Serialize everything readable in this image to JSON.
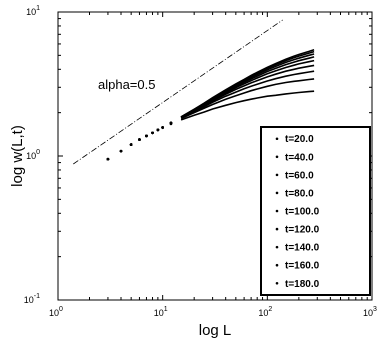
{
  "chart_data": {
    "type": "scatter",
    "title": "",
    "xlabel": "log L",
    "ylabel": "log w(L,t)",
    "xscale": "log",
    "yscale": "log",
    "xlim": [
      1,
      1000
    ],
    "ylim": [
      0.1,
      10
    ],
    "grid": false,
    "legend_position": "bottom-right",
    "x_ticks": [
      {
        "value": 1,
        "base": "10",
        "exp": "0"
      },
      {
        "value": 10,
        "base": "10",
        "exp": "1"
      },
      {
        "value": 100,
        "base": "10",
        "exp": "2"
      },
      {
        "value": 1000,
        "base": "10",
        "exp": "3"
      }
    ],
    "y_ticks": [
      {
        "value": 0.1,
        "base": "10",
        "exp": "-1"
      },
      {
        "value": 1,
        "base": "10",
        "exp": "0"
      },
      {
        "value": 10,
        "base": "10",
        "exp": "1"
      }
    ],
    "reference_line": {
      "label": "alpha=0.5",
      "slope": 0.5,
      "x": [
        1.4,
        140
      ],
      "y": [
        0.88,
        8.8
      ]
    },
    "x": [
      3,
      4,
      5,
      6,
      7,
      8,
      9,
      10,
      12,
      15,
      20,
      25,
      30,
      40,
      50,
      60,
      70,
      80,
      100,
      120,
      150,
      180,
      200,
      250,
      280
    ],
    "series": [
      {
        "name": "t=20.0",
        "values": [
          0.95,
          1.08,
          1.2,
          1.3,
          1.38,
          1.45,
          1.52,
          1.57,
          1.67,
          1.78,
          1.92,
          2.02,
          2.12,
          2.25,
          2.35,
          2.42,
          2.48,
          2.53,
          2.6,
          2.64,
          2.7,
          2.74,
          2.76,
          2.8,
          2.82
        ]
      },
      {
        "name": "t=40.0",
        "values": [
          0.95,
          1.08,
          1.2,
          1.3,
          1.38,
          1.45,
          1.52,
          1.58,
          1.68,
          1.82,
          2.0,
          2.15,
          2.28,
          2.48,
          2.62,
          2.74,
          2.84,
          2.92,
          3.05,
          3.14,
          3.24,
          3.3,
          3.33,
          3.4,
          3.43
        ]
      },
      {
        "name": "t=60.0",
        "values": [
          0.95,
          1.08,
          1.2,
          1.3,
          1.38,
          1.45,
          1.52,
          1.58,
          1.69,
          1.84,
          2.04,
          2.2,
          2.36,
          2.6,
          2.78,
          2.93,
          3.05,
          3.15,
          3.32,
          3.44,
          3.58,
          3.68,
          3.73,
          3.83,
          3.88
        ]
      },
      {
        "name": "t=80.0",
        "values": [
          0.95,
          1.08,
          1.2,
          1.3,
          1.38,
          1.45,
          1.52,
          1.58,
          1.69,
          1.85,
          2.06,
          2.24,
          2.41,
          2.68,
          2.9,
          3.07,
          3.22,
          3.34,
          3.54,
          3.7,
          3.88,
          4.0,
          4.07,
          4.2,
          4.26
        ]
      },
      {
        "name": "t=100.0",
        "values": [
          0.95,
          1.08,
          1.2,
          1.3,
          1.38,
          1.45,
          1.52,
          1.58,
          1.69,
          1.86,
          2.08,
          2.27,
          2.45,
          2.74,
          2.98,
          3.17,
          3.34,
          3.48,
          3.72,
          3.9,
          4.12,
          4.27,
          4.36,
          4.52,
          4.6
        ]
      },
      {
        "name": "t=120.0",
        "values": [
          0.95,
          1.08,
          1.2,
          1.3,
          1.38,
          1.45,
          1.52,
          1.58,
          1.7,
          1.86,
          2.09,
          2.29,
          2.48,
          2.79,
          3.04,
          3.25,
          3.43,
          3.59,
          3.86,
          4.06,
          4.31,
          4.49,
          4.59,
          4.78,
          4.88
        ]
      },
      {
        "name": "t=140.0",
        "values": [
          0.95,
          1.08,
          1.2,
          1.3,
          1.38,
          1.45,
          1.52,
          1.58,
          1.7,
          1.87,
          2.1,
          2.31,
          2.51,
          2.83,
          3.09,
          3.31,
          3.51,
          3.68,
          3.97,
          4.19,
          4.47,
          4.67,
          4.78,
          5.0,
          5.11
        ]
      },
      {
        "name": "t=160.0",
        "values": [
          0.95,
          1.08,
          1.2,
          1.3,
          1.38,
          1.45,
          1.52,
          1.58,
          1.7,
          1.87,
          2.11,
          2.32,
          2.53,
          2.86,
          3.13,
          3.36,
          3.57,
          3.75,
          4.06,
          4.3,
          4.6,
          4.82,
          4.94,
          5.18,
          5.31
        ]
      },
      {
        "name": "t=180.0",
        "values": [
          0.95,
          1.08,
          1.2,
          1.3,
          1.38,
          1.45,
          1.52,
          1.58,
          1.7,
          1.87,
          2.11,
          2.33,
          2.54,
          2.88,
          3.16,
          3.4,
          3.62,
          3.81,
          4.13,
          4.38,
          4.7,
          4.94,
          5.07,
          5.33,
          5.47
        ]
      }
    ]
  }
}
